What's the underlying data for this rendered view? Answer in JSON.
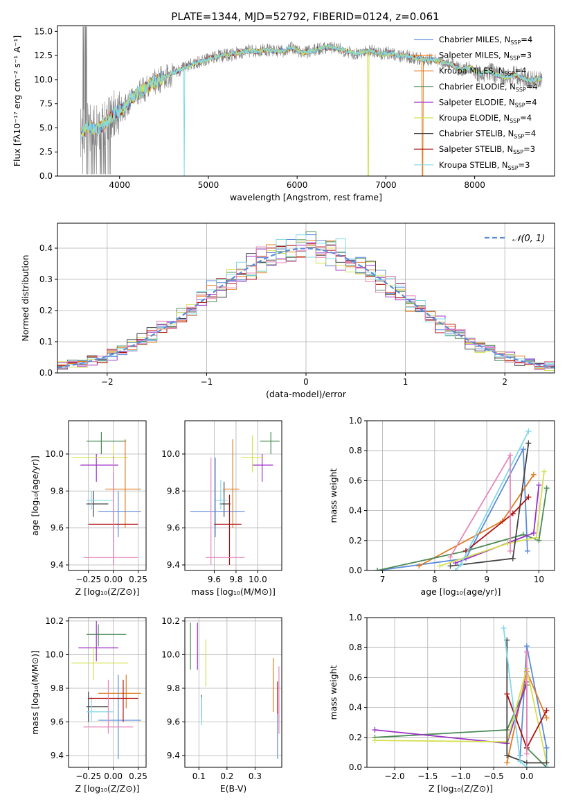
{
  "figure": {
    "title": "PLATE=1344, MJD=52792, FIBERID=0124, z=0.061"
  },
  "colors": {
    "Chabrier MILES": "#5b8bd9",
    "Salpeter MILES": "#ff7f0e",
    "Kroupa MILES": "#e07b20",
    "Chabrier ELODIE": "#4a8a55",
    "Salpeter ELODIE": "#9b30c8",
    "Kroupa ELODIE": "#d4e050",
    "Chabrier STELIB": "#444444",
    "Salpeter STELIB": "#b01010",
    "Kroupa STELIB": "#80d8e8",
    "pink": "#e886b8",
    "data": "#808080",
    "normal": "#5b8bd9"
  },
  "chart_data": [
    {
      "id": "spectrum",
      "type": "line",
      "xlabel": "wavelength [Angstrom, rest frame]",
      "ylabel": "Flux [fλ10⁻¹⁷ erg cm⁻² s⁻¹ A⁻¹]",
      "xlim": [
        3300,
        8900
      ],
      "ylim": [
        0,
        15.6
      ],
      "xticks": [
        "4000",
        "5000",
        "6000",
        "7000",
        "8000"
      ],
      "xtick_values": [
        4000,
        5000,
        6000,
        7000,
        8000
      ],
      "yticks": [
        "0.0",
        "2.5",
        "5.0",
        "7.5",
        "10.0",
        "12.5",
        "15.0"
      ],
      "ytick_values": [
        0,
        2.5,
        5,
        7.5,
        10,
        12.5,
        15
      ],
      "grid": false,
      "legend_position": "top-right",
      "legend": [
        {
          "name": "Chabrier MILES",
          "ssp": "4"
        },
        {
          "name": "Salpeter MILES",
          "ssp": "3"
        },
        {
          "name": "Kroupa MILES",
          "ssp": "4"
        },
        {
          "name": "Chabrier ELODIE",
          "ssp": "4"
        },
        {
          "name": "Salpeter ELODIE",
          "ssp": "4"
        },
        {
          "name": "Kroupa ELODIE",
          "ssp": "4"
        },
        {
          "name": "Chabrier STELIB",
          "ssp": "4"
        },
        {
          "name": "Salpeter STELIB",
          "ssp": "3"
        },
        {
          "name": "Kroupa STELIB",
          "ssp": "3"
        }
      ],
      "continuum": {
        "x": [
          3570,
          3650,
          3750,
          3850,
          3950,
          4050,
          4150,
          4250,
          4350,
          4450,
          4550,
          4650,
          4750,
          4850,
          4950,
          5050,
          5150,
          5250,
          5350,
          5450,
          5550,
          5650,
          5750,
          5850,
          5950,
          6050,
          6150,
          6250,
          6350,
          6450,
          6550,
          6650,
          6750,
          6850,
          6950,
          7050,
          7150,
          7250,
          7350,
          7450,
          7550,
          7650,
          7750,
          7850,
          7950,
          8050,
          8150,
          8250,
          8350,
          8450,
          8550,
          8650,
          8750
        ],
        "y": [
          4.5,
          5.2,
          4.8,
          5.6,
          6.5,
          7.0,
          8.2,
          8.8,
          9.5,
          10.0,
          10.5,
          10.9,
          11.3,
          11.7,
          12.0,
          12.3,
          12.5,
          12.6,
          12.8,
          13.0,
          12.9,
          13.1,
          12.9,
          13.0,
          13.3,
          12.8,
          12.9,
          13.2,
          13.4,
          13.2,
          13.0,
          12.7,
          12.9,
          13.0,
          12.6,
          12.8,
          12.5,
          12.4,
          12.2,
          12.1,
          12.0,
          11.8,
          11.5,
          11.0,
          11.3,
          10.6,
          10.9,
          10.5,
          10.2,
          10.6,
          10.1,
          9.9,
          10.2
        ]
      }
    },
    {
      "id": "residuals",
      "type": "histogram",
      "xlabel": "(data-model)/error",
      "ylabel": "Normed distribution",
      "xlim": [
        -2.5,
        2.5
      ],
      "ylim": [
        0,
        0.48
      ],
      "xticks": [
        "−2",
        "−1",
        "0",
        "1",
        "2"
      ],
      "xtick_values": [
        -2,
        -1,
        0,
        1,
        2
      ],
      "yticks": [
        "0.0",
        "0.1",
        "0.2",
        "0.3",
        "0.4"
      ],
      "ytick_values": [
        0,
        0.1,
        0.2,
        0.3,
        0.4
      ],
      "grid": true,
      "legend_position": "top-right",
      "legend": [
        {
          "name": "𝒩(0, 1)"
        }
      ],
      "bin_width": 0.1,
      "bin_start": -2.5
    },
    {
      "id": "age-vs-Z",
      "type": "errorbar",
      "xlabel": "Z [log₁₀(Z/Z⊙)]",
      "ylabel": "age  [log₁₀(age/yr)]",
      "xlim": [
        -0.45,
        0.33
      ],
      "ylim": [
        9.37,
        10.18
      ],
      "xticks": [
        "−0.25",
        "0.00",
        "0.25"
      ],
      "xtick_values": [
        -0.25,
        0.0,
        0.25
      ],
      "yticks": [
        "9.4",
        "9.6",
        "9.8",
        "10.0"
      ],
      "ytick_values": [
        9.4,
        9.6,
        9.8,
        10.0
      ],
      "grid": true,
      "points": [
        {
          "c": "#4a8a55",
          "x": -0.12,
          "xe": [
            -0.27,
            0.13
          ],
          "y": 10.07,
          "ye": [
            10.0,
            10.12
          ]
        },
        {
          "c": "#9b30c8",
          "x": -0.17,
          "xe": [
            -0.33,
            0.05
          ],
          "y": 9.94,
          "ye": [
            9.85,
            10.0
          ]
        },
        {
          "c": "#d4e050",
          "x": 0.0,
          "xe": [
            -0.42,
            0.15
          ],
          "y": 9.98,
          "ye": [
            9.9,
            10.05
          ]
        },
        {
          "c": "#444444",
          "x": -0.2,
          "xe": [
            -0.27,
            -0.05
          ],
          "y": 9.73,
          "ye": [
            9.66,
            9.8
          ]
        },
        {
          "c": "#80d8e8",
          "x": -0.22,
          "xe": [
            -0.27,
            0.0
          ],
          "y": 9.75,
          "ye": [
            9.7,
            9.8
          ]
        },
        {
          "c": "#e07b20",
          "x": 0.12,
          "xe": [
            -0.08,
            0.28
          ],
          "y": 9.81,
          "ye": [
            9.6,
            10.08
          ]
        },
        {
          "c": "#5b8bd9",
          "x": 0.05,
          "xe": [
            -0.15,
            0.28
          ],
          "y": 9.69,
          "ye": [
            9.55,
            9.8
          ]
        },
        {
          "c": "#b01010",
          "x": 0.0,
          "xe": [
            -0.25,
            0.25
          ],
          "y": 9.62,
          "ye": [
            9.4,
            9.9
          ]
        },
        {
          "c": "#e886b8",
          "x": 0.0,
          "xe": [
            -0.3,
            0.25
          ],
          "y": 9.44,
          "ye": [
            9.4,
            9.99
          ]
        }
      ]
    },
    {
      "id": "age-vs-mass",
      "type": "errorbar",
      "xlabel": "mass [log₁₀(M/M⊙)]",
      "ylabel": "",
      "xlim": [
        9.33,
        10.22
      ],
      "ylim": [
        9.37,
        10.18
      ],
      "xticks": [
        "9.6",
        "9.8",
        "10.0"
      ],
      "xtick_values": [
        9.6,
        9.8,
        10.0
      ],
      "yticks": [
        "9.4",
        "9.6",
        "9.8",
        "10.0"
      ],
      "ytick_values": [
        9.4,
        9.6,
        9.8,
        10.0
      ],
      "grid": true,
      "points": [
        {
          "c": "#4a8a55",
          "x": 10.12,
          "xe": [
            10.02,
            10.2
          ],
          "y": 10.07,
          "ye": [
            10.0,
            10.12
          ]
        },
        {
          "c": "#9b30c8",
          "x": 10.04,
          "xe": [
            9.95,
            10.14
          ],
          "y": 9.94,
          "ye": [
            9.85,
            10.0
          ]
        },
        {
          "c": "#d4e050",
          "x": 9.95,
          "xe": [
            9.85,
            10.05
          ],
          "y": 9.98,
          "ye": [
            9.9,
            10.1
          ]
        },
        {
          "c": "#444444",
          "x": 9.69,
          "xe": [
            9.65,
            9.75
          ],
          "y": 9.73,
          "ye": [
            9.66,
            9.85
          ]
        },
        {
          "c": "#80d8e8",
          "x": 9.66,
          "xe": [
            9.6,
            9.72
          ],
          "y": 9.75,
          "ye": [
            9.7,
            9.86
          ]
        },
        {
          "c": "#e07b20",
          "x": 9.77,
          "xe": [
            9.68,
            9.83
          ],
          "y": 9.81,
          "ye": [
            9.6,
            10.08
          ]
        },
        {
          "c": "#5b8bd9",
          "x": 9.61,
          "xe": [
            9.38,
            9.88
          ],
          "y": 9.69,
          "ye": [
            9.55,
            9.98
          ]
        },
        {
          "c": "#b01010",
          "x": 9.74,
          "xe": [
            9.6,
            9.85
          ],
          "y": 9.62,
          "ye": [
            9.4,
            9.78
          ]
        },
        {
          "c": "#e886b8",
          "x": 9.57,
          "xe": [
            9.52,
            9.88
          ],
          "y": 9.44,
          "ye": [
            9.4,
            9.98
          ]
        }
      ]
    },
    {
      "id": "weight-vs-age",
      "type": "line",
      "xlabel": "age  [log₁₀(age/yr)]",
      "ylabel": "mass weight",
      "xlim": [
        6.7,
        10.3
      ],
      "ylim": [
        0,
        1.0
      ],
      "xticks": [
        "7",
        "8",
        "9",
        "10"
      ],
      "xtick_values": [
        7,
        8,
        9,
        10
      ],
      "yticks": [
        "0.0",
        "0.2",
        "0.4",
        "0.6",
        "0.8",
        "1.0"
      ],
      "ytick_values": [
        0,
        0.2,
        0.4,
        0.6,
        0.8,
        1.0
      ],
      "grid": true,
      "series": [
        {
          "c": "#5b8bd9",
          "x": [
            6.9,
            8.6,
            9.7,
            9.78
          ],
          "y": [
            0.0,
            0.08,
            0.81,
            0.13
          ]
        },
        {
          "c": "#e07b20",
          "x": [
            7.7,
            9.3,
            9.9
          ],
          "y": [
            0.03,
            0.33,
            0.64
          ]
        },
        {
          "c": "#4a8a55",
          "x": [
            6.9,
            8.6,
            9.7,
            10.0,
            10.15
          ],
          "y": [
            0.0,
            0.13,
            0.24,
            0.2,
            0.55
          ]
        },
        {
          "c": "#9b30c8",
          "x": [
            8.4,
            9.9,
            10.0
          ],
          "y": [
            0.05,
            0.25,
            0.57
          ]
        },
        {
          "c": "#d4e050",
          "x": [
            8.1,
            9.4,
            9.95,
            10.1
          ],
          "y": [
            0.03,
            0.18,
            0.22,
            0.66
          ]
        },
        {
          "c": "#444444",
          "x": [
            8.3,
            9.5,
            9.8
          ],
          "y": [
            0.03,
            0.08,
            0.85
          ]
        },
        {
          "c": "#b01010",
          "x": [
            8.6,
            9.5,
            9.8
          ],
          "y": [
            0.13,
            0.38,
            0.49
          ]
        },
        {
          "c": "#80d8e8",
          "x": [
            8.4,
            8.5,
            9.8
          ],
          "y": [
            0.0,
            0.04,
            0.93
          ]
        },
        {
          "c": "#e886b8",
          "x": [
            8.3,
            9.45,
            9.45
          ],
          "y": [
            0.09,
            0.77,
            0.13
          ]
        }
      ]
    },
    {
      "id": "mass-vs-Z",
      "type": "errorbar",
      "xlabel": "Z [log₁₀(Z/Z⊙)]",
      "ylabel": "mass [log₁₀(M/M⊙)]",
      "xlim": [
        -0.45,
        0.33
      ],
      "ylim": [
        9.33,
        10.22
      ],
      "xticks": [
        "−0.25",
        "0.00",
        "0.25"
      ],
      "xtick_values": [
        -0.25,
        0.0,
        0.25
      ],
      "yticks": [
        "9.4",
        "9.6",
        "9.8",
        "10.0",
        "10.2"
      ],
      "ytick_values": [
        9.4,
        9.6,
        9.8,
        10.0,
        10.2
      ],
      "grid": true,
      "points": [
        {
          "c": "#4a8a55",
          "x": -0.15,
          "xe": [
            -0.27,
            0.13
          ],
          "y": 10.12,
          "ye": [
            10.05,
            10.18
          ]
        },
        {
          "c": "#9b30c8",
          "x": -0.17,
          "xe": [
            -0.35,
            0.05
          ],
          "y": 10.04,
          "ye": [
            9.96,
            10.2
          ]
        },
        {
          "c": "#d4e050",
          "x": -0.2,
          "xe": [
            -0.42,
            0.15
          ],
          "y": 9.95,
          "ye": [
            9.85,
            10.05
          ]
        },
        {
          "c": "#444444",
          "x": -0.25,
          "xe": [
            -0.27,
            -0.05
          ],
          "y": 9.69,
          "ye": [
            9.6,
            9.78
          ]
        },
        {
          "c": "#80d8e8",
          "x": -0.22,
          "xe": [
            -0.27,
            0.0
          ],
          "y": 9.66,
          "ye": [
            9.6,
            9.75
          ]
        },
        {
          "c": "#e07b20",
          "x": 0.13,
          "xe": [
            -0.15,
            0.28
          ],
          "y": 9.77,
          "ye": [
            9.68,
            9.88
          ]
        },
        {
          "c": "#5b8bd9",
          "x": 0.05,
          "xe": [
            -0.15,
            0.28
          ],
          "y": 9.61,
          "ye": [
            9.38,
            9.88
          ]
        },
        {
          "c": "#b01010",
          "x": 0.1,
          "xe": [
            -0.25,
            0.25
          ],
          "y": 9.74,
          "ye": [
            9.6,
            9.85
          ]
        },
        {
          "c": "#e886b8",
          "x": -0.05,
          "xe": [
            -0.3,
            0.2
          ],
          "y": 9.57,
          "ye": [
            9.53,
            9.85
          ]
        }
      ]
    },
    {
      "id": "mass-vs-ebv",
      "type": "errorbar",
      "xlabel": "E(B-V)",
      "ylabel": "",
      "xlim": [
        0.05,
        0.395
      ],
      "ylim": [
        9.33,
        10.22
      ],
      "xticks": [
        "0.1",
        "0.2",
        "0.3"
      ],
      "xtick_values": [
        0.1,
        0.2,
        0.3
      ],
      "yticks": [
        "9.4",
        "9.6",
        "9.8",
        "10.0",
        "10.2"
      ],
      "ytick_values": [
        9.4,
        9.6,
        9.8,
        10.0,
        10.2
      ],
      "grid": true,
      "points": [
        {
          "c": "#4a8a55",
          "x": 0.07,
          "y": 10.12,
          "ye": [
            9.91,
            10.19
          ]
        },
        {
          "c": "#9b30c8",
          "x": 0.095,
          "y": 10.04,
          "ye": [
            9.91,
            10.19
          ]
        },
        {
          "c": "#d4e050",
          "x": 0.125,
          "y": 9.95,
          "ye": [
            9.81,
            10.09
          ]
        },
        {
          "c": "#444444",
          "x": 0.11,
          "y": 9.69,
          "ye": [
            9.62,
            9.76
          ]
        },
        {
          "c": "#80d8e8",
          "x": 0.11,
          "y": 9.66,
          "ye": [
            9.58,
            9.75
          ]
        },
        {
          "c": "#e07b20",
          "x": 0.365,
          "y": 9.77,
          "ye": [
            9.66,
            9.98
          ]
        },
        {
          "c": "#5b8bd9",
          "x": 0.38,
          "y": 9.61,
          "ye": [
            9.38,
            9.66
          ]
        },
        {
          "c": "#b01010",
          "x": 0.38,
          "y": 9.74,
          "ye": [
            9.65,
            9.84
          ]
        },
        {
          "c": "#e886b8",
          "x": 0.385,
          "y": 9.57,
          "ye": [
            9.53,
            9.93
          ]
        }
      ]
    },
    {
      "id": "weight-vs-Z",
      "type": "line",
      "xlabel": "Z [log₁₀(Z/Z⊙)]",
      "ylabel": "mass weight",
      "xlim": [
        -2.42,
        0.42
      ],
      "ylim": [
        0,
        1.0
      ],
      "xticks": [
        "−2.0",
        "−1.5",
        "−1.0",
        "−0.5",
        "0.0"
      ],
      "xtick_values": [
        -2.0,
        -1.5,
        -1.0,
        -0.5,
        0.0
      ],
      "yticks": [
        "0.0",
        "0.2",
        "0.4",
        "0.6",
        "0.8",
        "1.0"
      ],
      "ytick_values": [
        0,
        0.2,
        0.4,
        0.6,
        0.8,
        1.0
      ],
      "grid": true,
      "series": [
        {
          "c": "#5b8bd9",
          "x": [
            -0.1,
            0.0,
            0.3,
            0.3
          ],
          "y": [
            0.08,
            0.81,
            0.13,
            0.0
          ]
        },
        {
          "c": "#e07b20",
          "x": [
            -0.3,
            0.0,
            0.3
          ],
          "y": [
            0.03,
            0.64,
            0.33
          ]
        },
        {
          "c": "#4a8a55",
          "x": [
            -2.3,
            -0.3,
            0.0,
            0.0,
            0.3
          ],
          "y": [
            0.2,
            0.25,
            0.55,
            0.13,
            0.0
          ]
        },
        {
          "c": "#9b30c8",
          "x": [
            -2.3,
            -0.3,
            0.0
          ],
          "y": [
            0.25,
            0.16,
            0.57
          ]
        },
        {
          "c": "#d4e050",
          "x": [
            -2.3,
            -0.3,
            0.0,
            0.3
          ],
          "y": [
            0.18,
            0.17,
            0.66,
            0.03
          ]
        },
        {
          "c": "#444444",
          "x": [
            -0.3,
            -0.3,
            0.0,
            0.3
          ],
          "y": [
            0.85,
            0.08,
            0.03,
            0.03
          ]
        },
        {
          "c": "#b01010",
          "x": [
            -0.3,
            0.0,
            0.3
          ],
          "y": [
            0.49,
            0.13,
            0.38
          ]
        },
        {
          "c": "#80d8e8",
          "x": [
            -0.35,
            -0.1,
            0.0,
            0.3
          ],
          "y": [
            0.93,
            0.04,
            0.0,
            0.0
          ]
        },
        {
          "c": "#e886b8",
          "x": [
            0.0,
            0.0
          ],
          "y": [
            0.77,
            0.09
          ]
        }
      ]
    }
  ]
}
